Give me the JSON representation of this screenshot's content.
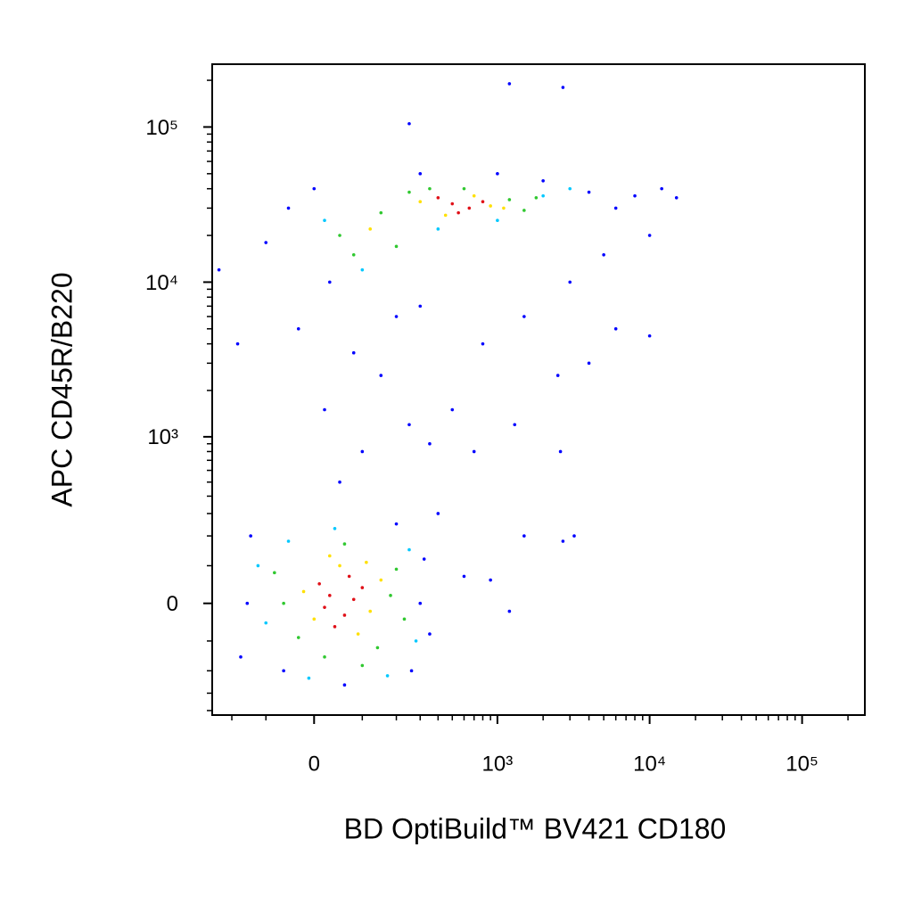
{
  "chart_data": {
    "type": "scatter",
    "xlabel": "BD OptiBuild™ BV421 CD180",
    "ylabel": "APC CD45R/B220",
    "xscale": "biexponential",
    "yscale": "biexponential",
    "xlim": [
      -280,
      258000
    ],
    "ylim": [
      -430,
      254000
    ],
    "xticks": [
      0,
      {
        "value": 1000,
        "label": "10³"
      },
      {
        "value": 10000,
        "label": "10⁴"
      },
      {
        "value": 100000,
        "label": "10⁵"
      }
    ],
    "yticks": [
      0,
      {
        "value": 1000,
        "label": "10³"
      },
      {
        "value": 10000,
        "label": "10⁴"
      },
      {
        "value": 100000,
        "label": "10⁵"
      }
    ],
    "xminorticks": [
      -200,
      -100,
      100,
      200,
      300,
      400,
      500,
      600,
      700,
      800,
      900,
      2000,
      3000,
      4000,
      5000,
      6000,
      7000,
      8000,
      9000,
      20000,
      30000,
      40000,
      50000,
      60000,
      70000,
      80000,
      90000,
      200000
    ],
    "yminorticks": [
      -400,
      -300,
      -200,
      -100,
      100,
      200,
      300,
      400,
      500,
      600,
      700,
      800,
      900,
      2000,
      3000,
      4000,
      5000,
      6000,
      7000,
      8000,
      9000,
      20000,
      30000,
      40000,
      50000,
      60000,
      70000,
      80000,
      90000,
      200000
    ],
    "series": [
      {
        "color": "#0000ff",
        "x": [
          -150,
          -170,
          300,
          320,
          -140,
          200,
          60,
          -60,
          260,
          350,
          50,
          100,
          20,
          150,
          250,
          80,
          -30,
          200,
          350,
          300,
          -100,
          -50,
          0,
          30,
          300,
          1000,
          2000,
          4000,
          6000,
          8000,
          12000,
          15000,
          10000,
          5000,
          3000,
          1500,
          800,
          2500,
          4000,
          6000,
          10000,
          1300,
          2600,
          500,
          700,
          1200,
          2700,
          250,
          400,
          1500,
          2700,
          3200,
          600,
          1200,
          900,
          -250,
          -180
        ],
        "y": [
          0,
          -150,
          0,
          120,
          200,
          250,
          -260,
          -200,
          -200,
          -80,
          500,
          800,
          1500,
          2500,
          1200,
          3500,
          5000,
          6000,
          900,
          7000,
          18000,
          30000,
          40000,
          10000,
          50000,
          50000,
          45000,
          38000,
          30000,
          36000,
          40000,
          35000,
          20000,
          15000,
          10000,
          6000,
          4000,
          2500,
          3000,
          5000,
          4500,
          1200,
          800,
          1500,
          800,
          190000,
          180000,
          105000,
          300,
          200,
          180,
          200,
          70,
          -20,
          60,
          12000,
          4000
        ]
      },
      {
        "color": "#00c8ff",
        "x": [
          -100,
          250,
          -50,
          280,
          -120,
          40,
          170,
          -10,
          20,
          2000,
          3000,
          100,
          1000,
          400
        ],
        "y": [
          -50,
          150,
          180,
          -100,
          100,
          230,
          -220,
          -230,
          25000,
          36000,
          40000,
          12000,
          25000,
          22000
        ]
      },
      {
        "color": "#30c830",
        "x": [
          -60,
          180,
          -30,
          60,
          140,
          200,
          -80,
          20,
          100,
          230,
          50,
          150,
          250,
          1200,
          1500,
          350,
          80,
          200,
          600,
          1800
        ],
        "y": [
          0,
          20,
          -90,
          170,
          -120,
          90,
          80,
          -150,
          -180,
          -40,
          20000,
          28000,
          38000,
          34000,
          29000,
          40000,
          15000,
          17000,
          40000,
          35000
        ]
      },
      {
        "color": "#ffe000",
        "x": [
          -20,
          120,
          50,
          90,
          0,
          150,
          30,
          110,
          300,
          900,
          450,
          700,
          1100,
          120
        ],
        "y": [
          30,
          -20,
          100,
          -80,
          -40,
          60,
          130,
          110,
          33000,
          31000,
          27000,
          36000,
          30000,
          22000
        ]
      },
      {
        "color": "#e01018",
        "x": [
          30,
          60,
          10,
          80,
          40,
          100,
          20,
          70,
          500,
          650,
          400,
          800,
          550
        ],
        "y": [
          20,
          -30,
          50,
          10,
          -60,
          40,
          -10,
          70,
          32000,
          30000,
          35000,
          33000,
          28000
        ]
      }
    ]
  }
}
